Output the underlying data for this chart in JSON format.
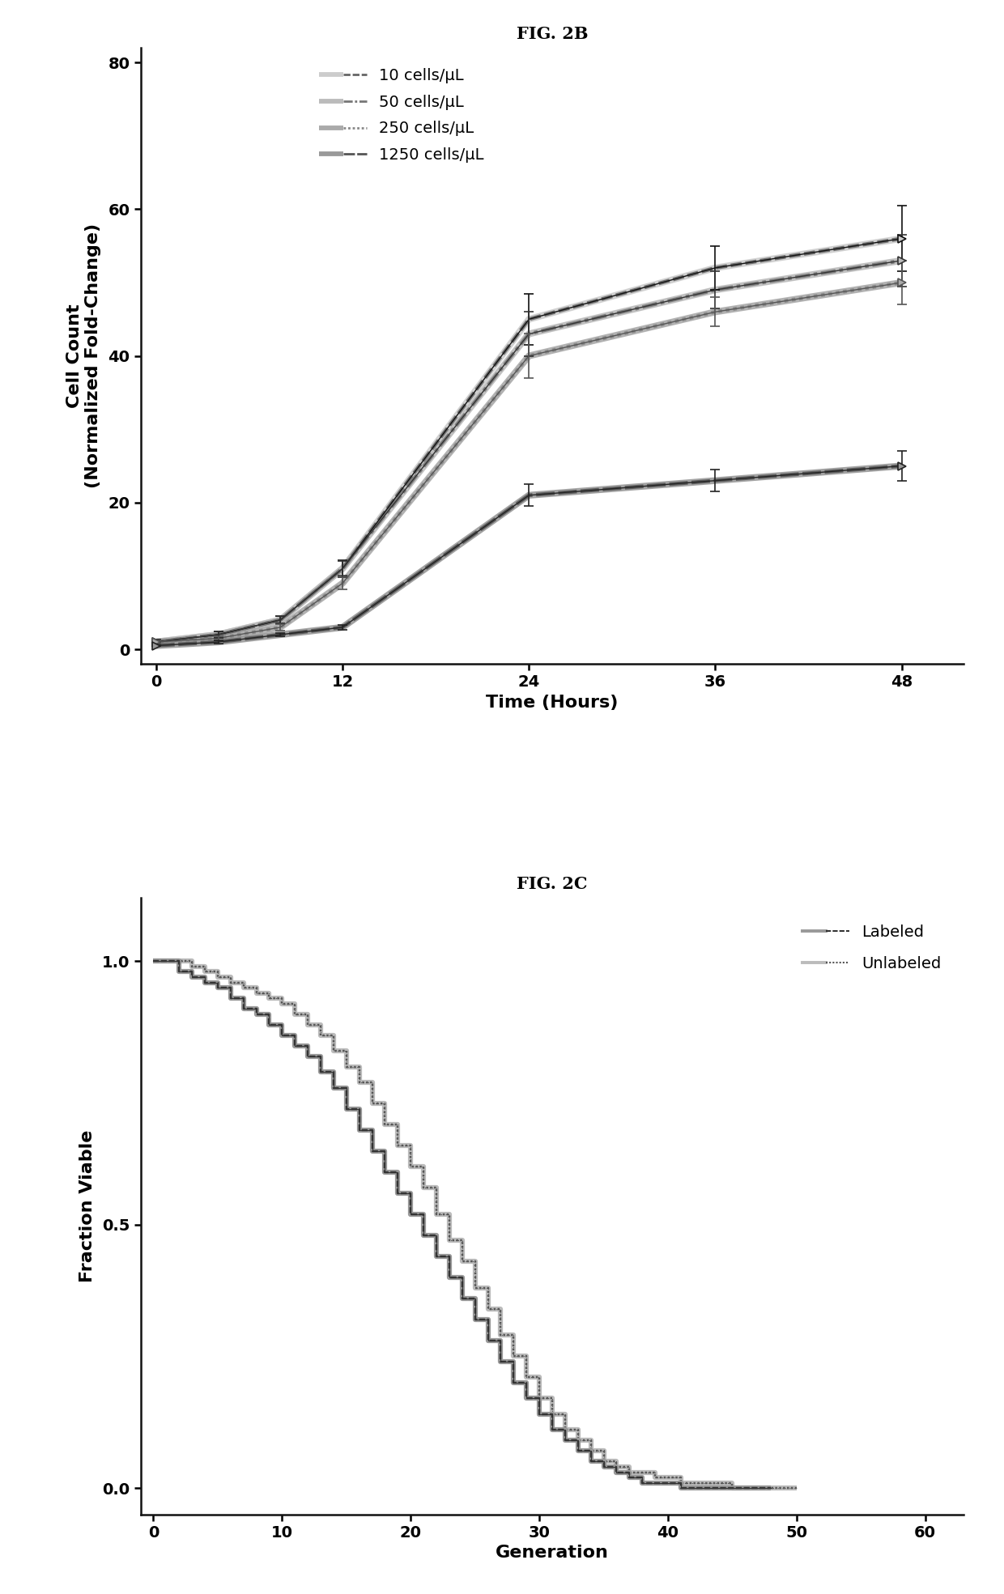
{
  "fig2b": {
    "title": "FIG. 2B",
    "xlabel": "Time (Hours)",
    "ylabel": "Cell Count\n(Normalized Fold-Change)",
    "xlim": [
      -1,
      52
    ],
    "ylim": [
      -2,
      82
    ],
    "xticks": [
      0,
      12,
      24,
      36,
      48
    ],
    "yticks": [
      0,
      20,
      40,
      60,
      80
    ],
    "series": [
      {
        "label": "10 cells/μL",
        "x": [
          0,
          4,
          8,
          12,
          24,
          36,
          48
        ],
        "y": [
          1,
          2,
          4,
          11,
          45,
          52,
          56
        ],
        "yerr": [
          0.3,
          0.4,
          0.5,
          1.2,
          3.5,
          3.0,
          4.5
        ],
        "lw": 3.5,
        "color": "#333333",
        "hatch_color": "#aaaaaa"
      },
      {
        "label": "50 cells/μL",
        "x": [
          0,
          4,
          8,
          12,
          24,
          36,
          48
        ],
        "y": [
          1,
          2,
          4,
          11,
          43,
          49,
          53
        ],
        "yerr": [
          0.3,
          0.4,
          0.5,
          1.0,
          3.0,
          2.5,
          3.5
        ],
        "lw": 3.5,
        "color": "#555555",
        "hatch_color": "#bbbbbb"
      },
      {
        "label": "250 cells/μL",
        "x": [
          0,
          4,
          8,
          12,
          24,
          36,
          48
        ],
        "y": [
          1,
          1.5,
          3,
          9,
          40,
          46,
          50
        ],
        "yerr": [
          0.2,
          0.3,
          0.4,
          0.8,
          3.0,
          2.0,
          3.0
        ],
        "lw": 3.5,
        "color": "#888888",
        "hatch_color": "#cccccc"
      },
      {
        "label": "1250 cells/μL",
        "x": [
          0,
          4,
          8,
          12,
          24,
          36,
          48
        ],
        "y": [
          0.5,
          1,
          2,
          3,
          21,
          23,
          25
        ],
        "yerr": [
          0.1,
          0.2,
          0.2,
          0.3,
          1.5,
          1.5,
          2.0
        ],
        "lw": 3.5,
        "color": "#444444",
        "hatch_color": "#999999"
      }
    ]
  },
  "fig2c": {
    "title": "FIG. 2C",
    "xlabel": "Generation",
    "ylabel": "Fraction Viable",
    "xlim": [
      -1,
      63
    ],
    "ylim": [
      -0.05,
      1.12
    ],
    "xticks": [
      0,
      10,
      20,
      30,
      40,
      50,
      60
    ],
    "yticks": [
      0.0,
      0.5,
      1.0
    ],
    "ytick_labels": [
      "0.0",
      "0.5",
      "1.0"
    ],
    "labeled": {
      "label": "Labeled",
      "x": [
        0,
        1,
        2,
        3,
        4,
        5,
        6,
        7,
        8,
        9,
        10,
        11,
        12,
        13,
        14,
        15,
        16,
        17,
        18,
        19,
        20,
        21,
        22,
        23,
        24,
        25,
        26,
        27,
        28,
        29,
        30,
        31,
        32,
        33,
        34,
        35,
        36,
        37,
        38,
        39,
        40,
        41,
        42,
        43,
        44,
        45,
        46,
        47,
        48
      ],
      "y": [
        1.0,
        1.0,
        0.98,
        0.97,
        0.96,
        0.95,
        0.93,
        0.91,
        0.9,
        0.88,
        0.86,
        0.84,
        0.82,
        0.79,
        0.76,
        0.72,
        0.68,
        0.64,
        0.6,
        0.56,
        0.52,
        0.48,
        0.44,
        0.4,
        0.36,
        0.32,
        0.28,
        0.24,
        0.2,
        0.17,
        0.14,
        0.11,
        0.09,
        0.07,
        0.05,
        0.04,
        0.03,
        0.02,
        0.01,
        0.01,
        0.01,
        0.0,
        0.0,
        0.0,
        0.0,
        0.0,
        0.0,
        0.0,
        0.0
      ],
      "color": "#444444",
      "lw": 3.5
    },
    "unlabeled": {
      "label": "Unlabeled",
      "x": [
        0,
        1,
        2,
        3,
        4,
        5,
        6,
        7,
        8,
        9,
        10,
        11,
        12,
        13,
        14,
        15,
        16,
        17,
        18,
        19,
        20,
        21,
        22,
        23,
        24,
        25,
        26,
        27,
        28,
        29,
        30,
        31,
        32,
        33,
        34,
        35,
        36,
        37,
        38,
        39,
        40,
        41,
        42,
        43,
        44,
        45,
        46,
        47,
        48,
        49,
        50
      ],
      "y": [
        1.0,
        1.0,
        1.0,
        0.99,
        0.98,
        0.97,
        0.96,
        0.95,
        0.94,
        0.93,
        0.92,
        0.9,
        0.88,
        0.86,
        0.83,
        0.8,
        0.77,
        0.73,
        0.69,
        0.65,
        0.61,
        0.57,
        0.52,
        0.47,
        0.43,
        0.38,
        0.34,
        0.29,
        0.25,
        0.21,
        0.17,
        0.14,
        0.11,
        0.09,
        0.07,
        0.05,
        0.04,
        0.03,
        0.03,
        0.02,
        0.02,
        0.01,
        0.01,
        0.01,
        0.01,
        0.0,
        0.0,
        0.0,
        0.0,
        0.0,
        0.0
      ],
      "color": "#888888",
      "lw": 3.5
    }
  },
  "bg_color": "#ffffff",
  "text_color": "#000000",
  "title_fontsize": 15,
  "label_fontsize": 16,
  "tick_fontsize": 14,
  "legend_fontsize": 14
}
